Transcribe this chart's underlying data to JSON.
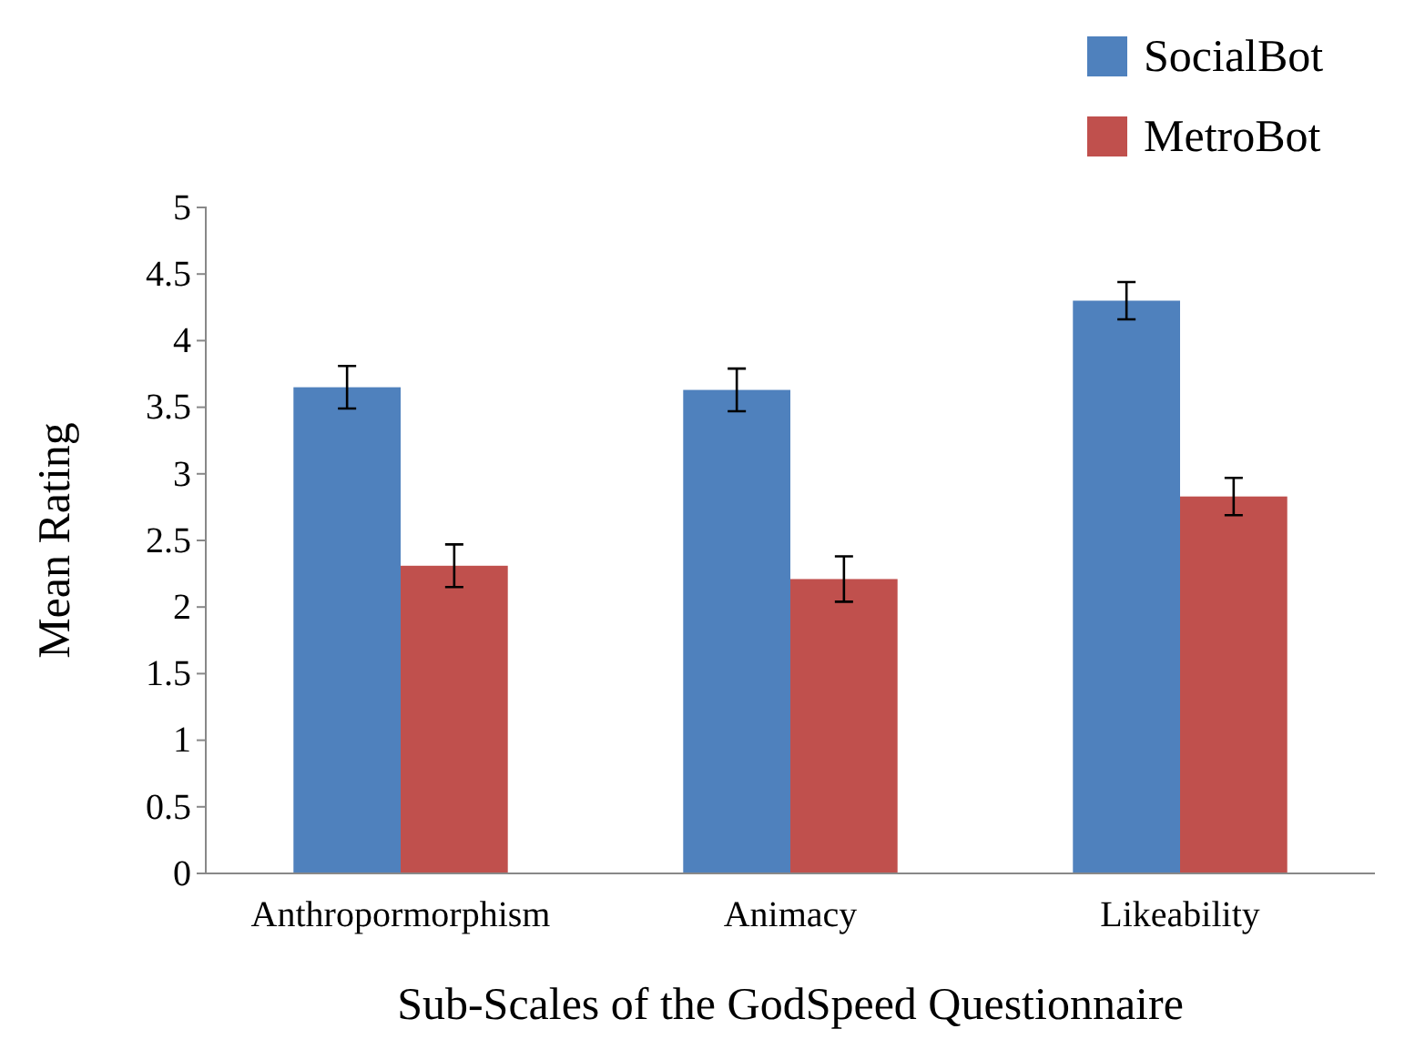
{
  "chart_data": {
    "type": "bar",
    "xlabel": "Sub-Scales of the GodSpeed Questionnaire",
    "ylabel": "Mean Rating",
    "categories": [
      "Anthropormorphism",
      "Animacy",
      "Likeability"
    ],
    "series": [
      {
        "name": "SocialBot",
        "color": "#4f81bd",
        "values": [
          3.65,
          3.63,
          4.3
        ],
        "errors": [
          0.16,
          0.16,
          0.14
        ]
      },
      {
        "name": "MetroBot",
        "color": "#c0504d",
        "values": [
          2.31,
          2.21,
          2.83
        ],
        "errors": [
          0.16,
          0.17,
          0.14
        ]
      }
    ],
    "ylim": [
      0,
      5
    ],
    "yticks": [
      0,
      0.5,
      1,
      1.5,
      2,
      2.5,
      3,
      3.5,
      4,
      4.5,
      5
    ],
    "grid": false,
    "legend": "top right"
  }
}
